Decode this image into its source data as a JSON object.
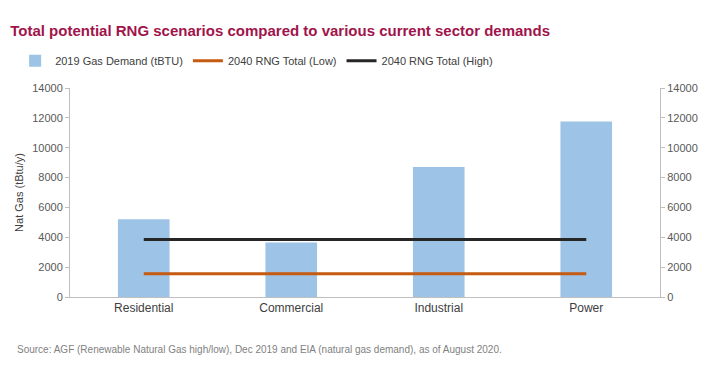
{
  "chart_data": {
    "type": "bar",
    "title": "Total potential RNG scenarios compared to various current sector demands",
    "y_label": "Nat Gas (tBtu/y)",
    "categories": [
      "Residential",
      "Commercial",
      "Industrial",
      "Power"
    ],
    "series": [
      {
        "name": "2019 Gas Demand (tBTU)",
        "type": "bar",
        "color": "#9DC3E6",
        "values": [
          5200,
          3650,
          8700,
          11750
        ]
      },
      {
        "name": "2040 RNG Total (Low)",
        "type": "line",
        "color": "#C55A11",
        "values": [
          1550,
          1550,
          1550,
          1550
        ]
      },
      {
        "name": "2040 RNG Total (High)",
        "type": "line",
        "color": "#262626",
        "values": [
          3850,
          3850,
          3850,
          3850
        ]
      }
    ],
    "ylim": [
      0,
      14000
    ],
    "yticks": [
      0,
      2000,
      4000,
      6000,
      8000,
      10000,
      12000,
      14000
    ],
    "y2lim": [
      0,
      14000
    ],
    "y2ticks": [
      0,
      2000,
      4000,
      6000,
      8000,
      10000,
      12000,
      14000
    ],
    "grid": false,
    "legend": "top",
    "annotations": [
      "Source: AGF (Renewable Natural Gas high/low), Dec 2019 and EIA (natural gas demand), as of August 2020."
    ]
  }
}
